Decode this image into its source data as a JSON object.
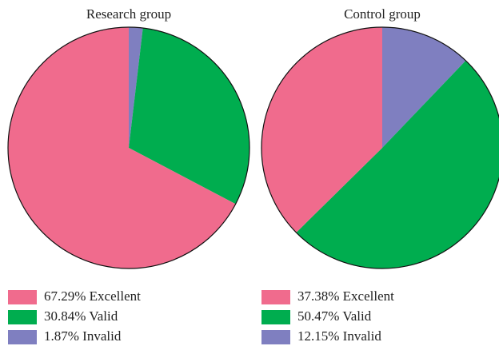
{
  "chart_data": [
    {
      "type": "pie",
      "title": "Research group",
      "labels": [
        "67.29% Excellent",
        "30.84% Valid",
        "1.87% Invalid"
      ],
      "values": [
        67.29,
        30.84,
        1.87
      ],
      "colors": [
        "#f06b8d",
        "#00ad4f",
        "#7f7fc0"
      ]
    },
    {
      "type": "pie",
      "title": "Control group",
      "labels": [
        "37.38% Excellent",
        "50.47% Valid",
        "12.15% Invalid"
      ],
      "values": [
        37.38,
        50.47,
        12.15
      ],
      "colors": [
        "#f06b8d",
        "#00ad4f",
        "#7f7fc0"
      ]
    }
  ]
}
